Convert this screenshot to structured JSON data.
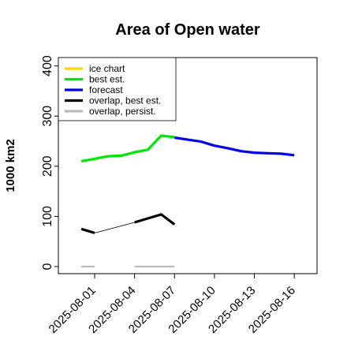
{
  "chart_data": {
    "type": "line",
    "title": "Area of Open water",
    "ylabel": "1000 km2",
    "xlabel": "",
    "ylim": [
      0,
      420
    ],
    "yticks": [
      0,
      100,
      200,
      300,
      400
    ],
    "x_range": [
      "2025-07-29",
      "2025-08-17"
    ],
    "x_ticks": [
      {
        "date": "2025-08-01",
        "label": "2025-08-01",
        "color": "#000000"
      },
      {
        "date": "2025-08-04",
        "label": "2025-08-04",
        "color": "#000000"
      },
      {
        "date": "2025-08-07",
        "label": "2025-08-07",
        "color": "#008000"
      },
      {
        "date": "2025-08-10",
        "label": "2025-08-10",
        "color": "#000000"
      },
      {
        "date": "2025-08-13",
        "label": "2025-08-13",
        "color": "#000000"
      },
      {
        "date": "2025-08-16",
        "label": "2025-08-16",
        "color": "#000000"
      }
    ],
    "grid": false,
    "legend_position": "top-left",
    "series": [
      {
        "name": "ice chart",
        "color": "#ffd700",
        "points": []
      },
      {
        "name": "best est.",
        "color": "#00e600",
        "points": [
          {
            "x": "2025-07-31",
            "y": 210
          },
          {
            "x": "2025-08-01",
            "y": 215
          },
          {
            "x": "2025-08-02",
            "y": 220
          },
          {
            "x": "2025-08-03",
            "y": 221
          },
          {
            "x": "2025-08-04",
            "y": 228
          },
          {
            "x": "2025-08-05",
            "y": 233
          },
          {
            "x": "2025-08-06",
            "y": 261
          },
          {
            "x": "2025-08-07",
            "y": 258
          }
        ]
      },
      {
        "name": "forecast",
        "color": "#0000e6",
        "points": [
          {
            "x": "2025-08-07",
            "y": 257
          },
          {
            "x": "2025-08-08",
            "y": 253
          },
          {
            "x": "2025-08-09",
            "y": 249
          },
          {
            "x": "2025-08-10",
            "y": 241
          },
          {
            "x": "2025-08-11",
            "y": 236
          },
          {
            "x": "2025-08-12",
            "y": 230
          },
          {
            "x": "2025-08-13",
            "y": 227
          },
          {
            "x": "2025-08-14",
            "y": 226
          },
          {
            "x": "2025-08-15",
            "y": 225
          },
          {
            "x": "2025-08-16",
            "y": 222
          }
        ]
      },
      {
        "name": "overlap, best est.",
        "color": "#000000",
        "segments": [
          [
            {
              "x": "2025-07-31",
              "y": 75
            },
            {
              "x": "2025-08-01",
              "y": 67
            }
          ],
          [
            {
              "x": "2025-08-04",
              "y": 88
            },
            {
              "x": "2025-08-06",
              "y": 104
            },
            {
              "x": "2025-08-07",
              "y": 84
            }
          ]
        ],
        "connector": [
          {
            "x": "2025-08-01",
            "y": 67
          },
          {
            "x": "2025-08-04",
            "y": 88
          }
        ]
      },
      {
        "name": "overlap, persist.",
        "color": "#bbbbbb",
        "segments": [
          [
            {
              "x": "2025-07-31",
              "y": 0
            },
            {
              "x": "2025-08-01",
              "y": 0
            }
          ],
          [
            {
              "x": "2025-08-04",
              "y": 0
            },
            {
              "x": "2025-08-07",
              "y": 0
            }
          ]
        ]
      }
    ]
  }
}
